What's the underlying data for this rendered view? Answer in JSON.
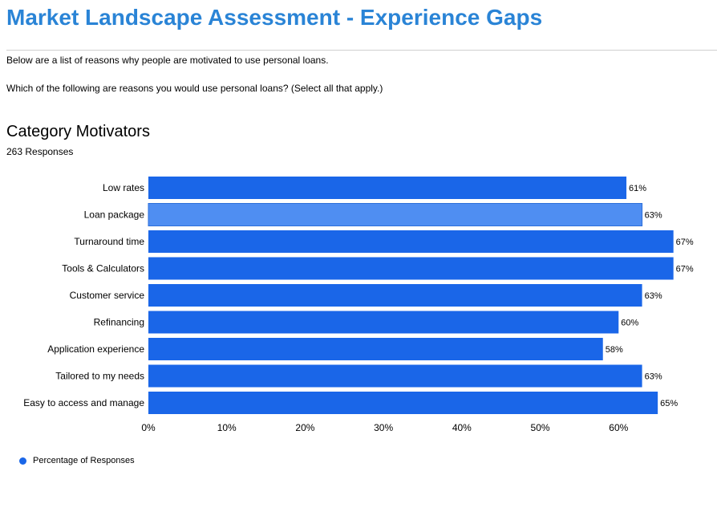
{
  "page": {
    "title": "Market Landscape Assessment - Experience Gaps",
    "intro": "Below are a list of reasons why people are motivated to use personal loans.",
    "question": "Which of the following are reasons you would use personal loans? (Select all that apply.)"
  },
  "chart_data": {
    "type": "bar",
    "orientation": "horizontal",
    "title": "Category Motivators",
    "subtitle": "263 Responses",
    "categories": [
      "Low rates",
      "Loan package",
      "Turnaround time",
      "Tools & Calculators",
      "Customer service",
      "Refinancing",
      "Application experience",
      "Tailored to my needs",
      "Easy to access and manage"
    ],
    "series": [
      {
        "name": "Percentage of Responses",
        "values": [
          61,
          63,
          67,
          67,
          63,
          60,
          58,
          63,
          65
        ],
        "data_labels": [
          "61%",
          "63%",
          "67%",
          "67%",
          "63%",
          "60%",
          "58%",
          "63%",
          "65%"
        ]
      }
    ],
    "highlighted_category": "Loan package",
    "xlim": [
      0,
      70
    ],
    "xticks": [
      "0%",
      "10%",
      "20%",
      "30%",
      "40%",
      "50%",
      "60%"
    ],
    "xtick_values": [
      0,
      10,
      20,
      30,
      40,
      50,
      60
    ],
    "legend_position": "bottom-left",
    "grid": false,
    "colors": {
      "bar": "#1a66e8",
      "bar_highlight": "#4f8ef2",
      "bar_highlight_border": "#2d6fd9",
      "title": "#2a84d6"
    }
  }
}
